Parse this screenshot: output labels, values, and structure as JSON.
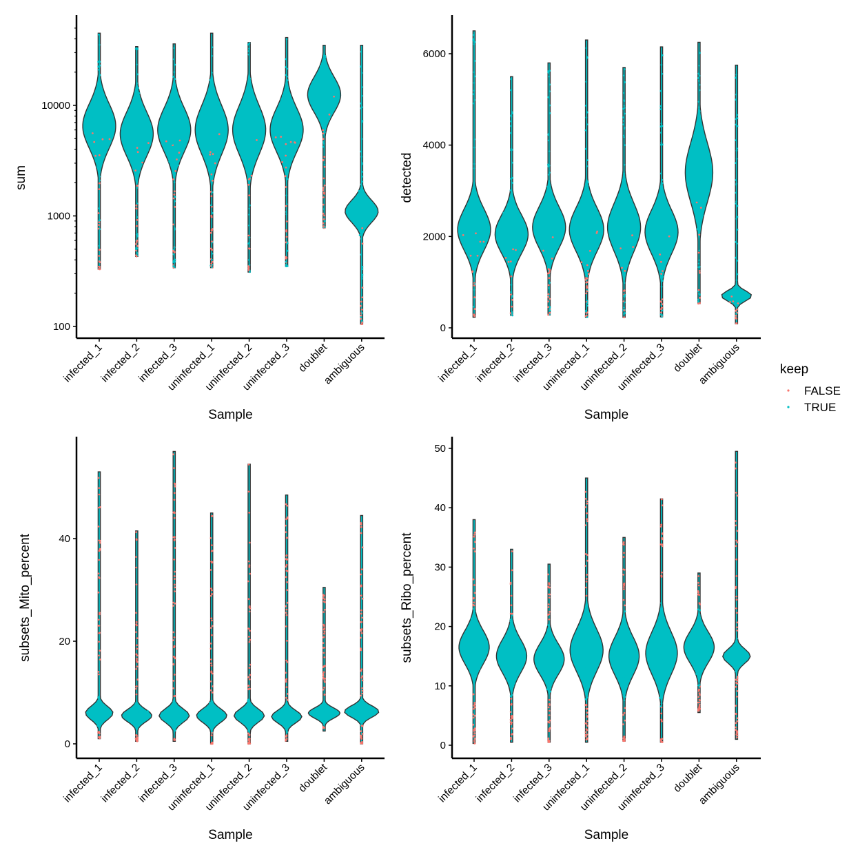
{
  "colors": {
    "violin_fill": "#00BFC4",
    "violin_outline": "#333333",
    "false": "#F8766D",
    "true": "#00BFC4"
  },
  "legend": {
    "title": "keep",
    "items": [
      {
        "label": "FALSE",
        "color": "#F8766D"
      },
      {
        "label": "TRUE",
        "color": "#00BFC4"
      }
    ],
    "placement": "right"
  },
  "chart_data": [
    {
      "type": "violin",
      "xlabel": "Sample",
      "ylabel": "sum",
      "scale": "log10",
      "ylim": [
        100,
        50000
      ],
      "yticks": [
        100,
        1000,
        10000
      ],
      "categories": [
        "infected_1",
        "infected_2",
        "infected_3",
        "uninfected_1",
        "uninfected_2",
        "uninfected_3",
        "doublet",
        "ambiguous"
      ],
      "min": [
        330,
        430,
        340,
        340,
        310,
        350,
        780,
        105
      ],
      "max": [
        45000,
        34000,
        36000,
        45000,
        37000,
        41000,
        35000,
        35000
      ],
      "mode": [
        6500,
        5500,
        6000,
        6000,
        6000,
        6000,
        12500,
        1100
      ]
    },
    {
      "type": "violin",
      "xlabel": "Sample",
      "ylabel": "detected",
      "scale": "linear",
      "ylim": [
        -250,
        6800
      ],
      "yticks": [
        0,
        2000,
        4000,
        6000
      ],
      "categories": [
        "infected_1",
        "infected_2",
        "infected_3",
        "uninfected_1",
        "uninfected_2",
        "uninfected_3",
        "doublet",
        "ambiguous"
      ],
      "min": [
        230,
        270,
        280,
        230,
        230,
        240,
        530,
        90
      ],
      "max": [
        6500,
        5500,
        5800,
        6300,
        5700,
        6150,
        6250,
        5750
      ],
      "mode": [
        2150,
        2050,
        2200,
        2150,
        2200,
        2100,
        3400,
        700
      ]
    },
    {
      "type": "violin",
      "xlabel": "Sample",
      "ylabel": "subsets_Mito_percent",
      "scale": "linear",
      "ylim": [
        -3,
        59
      ],
      "yticks": [
        0,
        20,
        40
      ],
      "categories": [
        "infected_1",
        "infected_2",
        "infected_3",
        "uninfected_1",
        "uninfected_2",
        "uninfected_3",
        "doublet",
        "ambiguous"
      ],
      "min": [
        1,
        0.5,
        0.5,
        0,
        0,
        0.5,
        2.5,
        0
      ],
      "max": [
        53,
        41.5,
        57,
        45,
        54.5,
        48.5,
        30.5,
        44.5
      ],
      "mode": [
        6,
        5.5,
        5.5,
        5.5,
        5.5,
        5.3,
        6,
        6.3
      ]
    },
    {
      "type": "violin",
      "xlabel": "Sample",
      "ylabel": "subsets_Ribo_percent",
      "scale": "linear",
      "ylim": [
        -2,
        52
      ],
      "yticks": [
        0,
        10,
        20,
        30,
        40,
        50
      ],
      "categories": [
        "infected_1",
        "infected_2",
        "infected_3",
        "uninfected_1",
        "uninfected_2",
        "uninfected_3",
        "doublet",
        "ambiguous"
      ],
      "min": [
        0.3,
        0.5,
        0.5,
        0.5,
        0.7,
        0.5,
        5.5,
        1
      ],
      "max": [
        38,
        33,
        30.5,
        45,
        35,
        41.5,
        29,
        49.5
      ],
      "mode": [
        16.5,
        15,
        14.5,
        16,
        15,
        15.5,
        16.5,
        15
      ]
    }
  ]
}
